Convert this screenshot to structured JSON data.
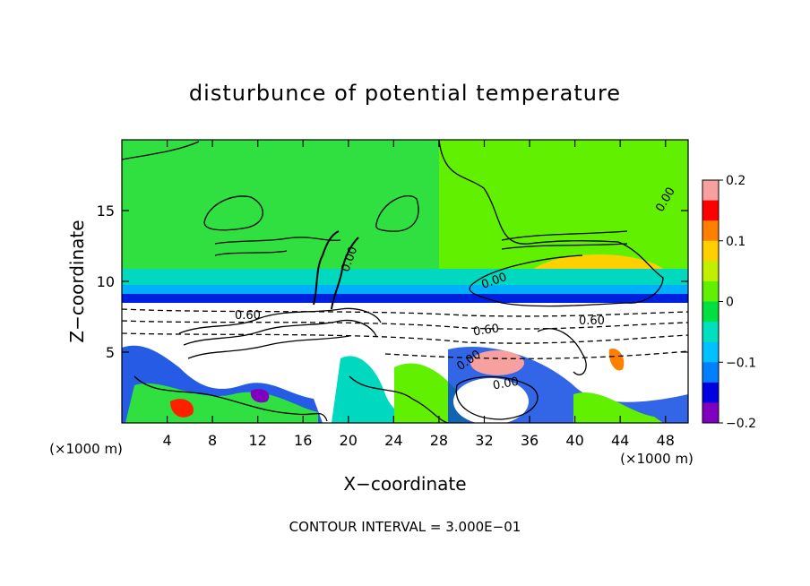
{
  "chart_data": {
    "type": "heatmap",
    "title": "disturbunce of potential temperature",
    "xlabel": "X−coordinate",
    "ylabel": "Z−coordinate",
    "x_unit": "(×1000 m)",
    "y_unit": "(×1000 m)",
    "xlim": [
      0,
      50
    ],
    "ylim": [
      0,
      20
    ],
    "x_ticks": [
      4,
      8,
      12,
      16,
      20,
      24,
      28,
      32,
      36,
      40,
      44,
      48
    ],
    "y_ticks": [
      5,
      10,
      15
    ],
    "colorbar": {
      "range": [
        -0.2,
        0.2
      ],
      "ticks": [
        "0.2",
        "0.1",
        "0",
        "−0.1",
        "−0.2"
      ],
      "colors": [
        "#f7a0a0",
        "#ff0000",
        "#ff8000",
        "#ffd000",
        "#c0f000",
        "#60f000",
        "#00e040",
        "#00e0c0",
        "#00c0ff",
        "#0080ff",
        "#0000e0",
        "#8000c0"
      ]
    },
    "contour_labels": [
      "0.00",
      "0.00",
      "0.00",
      "0.00",
      "0.00",
      "0.60",
      "0.60",
      "0.60"
    ],
    "contour_interval_text": "CONTOUR INTERVAL = 3.000E−01",
    "grid": false
  }
}
